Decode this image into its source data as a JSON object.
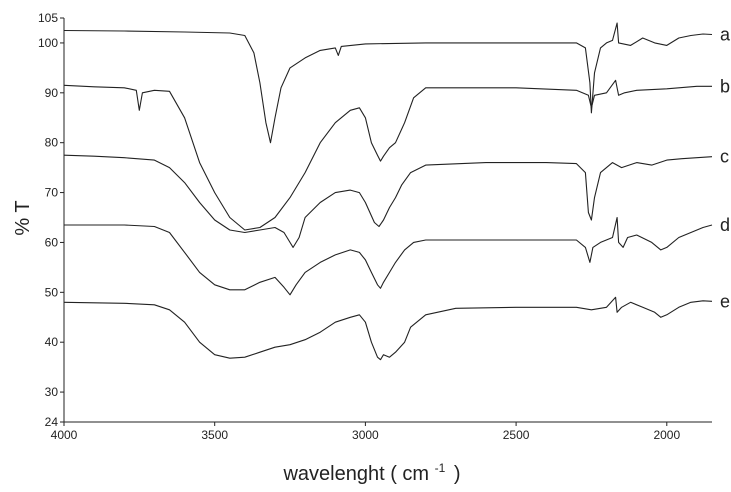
{
  "chart_data": {
    "type": "line",
    "title": "",
    "xlabel": "wavelenght ( cm",
    "xlabel_superscript": "-1",
    "xlabel_suffix": ")",
    "ylabel": "% T",
    "xlim": [
      4000,
      1850
    ],
    "ylim": [
      24,
      105
    ],
    "x_reversed": true,
    "grid": false,
    "x_ticks": [
      4000,
      3500,
      3000,
      2500,
      2000
    ],
    "y_ticks": [
      24,
      30,
      40,
      50,
      60,
      70,
      80,
      90,
      100,
      105
    ],
    "series": [
      {
        "name": "a",
        "points": [
          [
            4000,
            102.5
          ],
          [
            3800,
            102.4
          ],
          [
            3600,
            102.2
          ],
          [
            3450,
            102.0
          ],
          [
            3400,
            101.5
          ],
          [
            3370,
            98
          ],
          [
            3350,
            92
          ],
          [
            3330,
            84
          ],
          [
            3315,
            80
          ],
          [
            3300,
            85
          ],
          [
            3280,
            91
          ],
          [
            3250,
            95
          ],
          [
            3200,
            97
          ],
          [
            3150,
            98.5
          ],
          [
            3100,
            99
          ],
          [
            3090,
            97.5
          ],
          [
            3080,
            99.3
          ],
          [
            3000,
            99.8
          ],
          [
            2800,
            100
          ],
          [
            2500,
            100
          ],
          [
            2300,
            100
          ],
          [
            2270,
            99
          ],
          [
            2255,
            92
          ],
          [
            2250,
            86
          ],
          [
            2240,
            94
          ],
          [
            2220,
            99
          ],
          [
            2200,
            100
          ],
          [
            2180,
            100.5
          ],
          [
            2165,
            104
          ],
          [
            2160,
            100
          ],
          [
            2120,
            99.5
          ],
          [
            2080,
            101
          ],
          [
            2040,
            100
          ],
          [
            2000,
            99.5
          ],
          [
            1960,
            101
          ],
          [
            1920,
            101.5
          ],
          [
            1880,
            101.8
          ],
          [
            1850,
            101.7
          ]
        ]
      },
      {
        "name": "b",
        "points": [
          [
            4000,
            91.5
          ],
          [
            3900,
            91.2
          ],
          [
            3800,
            91
          ],
          [
            3760,
            90.5
          ],
          [
            3750,
            86.5
          ],
          [
            3740,
            90
          ],
          [
            3700,
            90.5
          ],
          [
            3650,
            90.3
          ],
          [
            3600,
            85
          ],
          [
            3550,
            76
          ],
          [
            3500,
            70
          ],
          [
            3450,
            65
          ],
          [
            3400,
            62.5
          ],
          [
            3350,
            63
          ],
          [
            3300,
            65
          ],
          [
            3250,
            69
          ],
          [
            3200,
            74
          ],
          [
            3150,
            80
          ],
          [
            3100,
            84
          ],
          [
            3050,
            86.5
          ],
          [
            3020,
            87
          ],
          [
            3000,
            85
          ],
          [
            2980,
            80
          ],
          [
            2960,
            77.5
          ],
          [
            2950,
            76.3
          ],
          [
            2940,
            77.3
          ],
          [
            2920,
            79
          ],
          [
            2900,
            80
          ],
          [
            2870,
            84
          ],
          [
            2840,
            89
          ],
          [
            2800,
            91
          ],
          [
            2500,
            91
          ],
          [
            2300,
            90.5
          ],
          [
            2260,
            89.5
          ],
          [
            2250,
            87
          ],
          [
            2240,
            89.5
          ],
          [
            2200,
            90
          ],
          [
            2170,
            92.5
          ],
          [
            2160,
            89.5
          ],
          [
            2140,
            90
          ],
          [
            2100,
            90.5
          ],
          [
            2000,
            90.8
          ],
          [
            1900,
            91.3
          ],
          [
            1850,
            91.3
          ]
        ]
      },
      {
        "name": "c",
        "points": [
          [
            4000,
            77.5
          ],
          [
            3900,
            77.3
          ],
          [
            3800,
            77
          ],
          [
            3700,
            76.5
          ],
          [
            3650,
            75
          ],
          [
            3600,
            72
          ],
          [
            3550,
            68
          ],
          [
            3500,
            64.5
          ],
          [
            3450,
            62.5
          ],
          [
            3400,
            62
          ],
          [
            3350,
            62.5
          ],
          [
            3300,
            63
          ],
          [
            3270,
            62
          ],
          [
            3250,
            60
          ],
          [
            3240,
            59
          ],
          [
            3220,
            61
          ],
          [
            3200,
            65
          ],
          [
            3150,
            68
          ],
          [
            3100,
            70
          ],
          [
            3050,
            70.5
          ],
          [
            3020,
            70
          ],
          [
            3000,
            68
          ],
          [
            2970,
            64
          ],
          [
            2955,
            63.2
          ],
          [
            2940,
            64.5
          ],
          [
            2920,
            67
          ],
          [
            2900,
            69
          ],
          [
            2880,
            71.5
          ],
          [
            2850,
            74
          ],
          [
            2800,
            75.5
          ],
          [
            2600,
            76
          ],
          [
            2400,
            76
          ],
          [
            2300,
            75.8
          ],
          [
            2270,
            74
          ],
          [
            2260,
            66
          ],
          [
            2250,
            64.5
          ],
          [
            2240,
            69
          ],
          [
            2220,
            74
          ],
          [
            2200,
            75
          ],
          [
            2180,
            76
          ],
          [
            2150,
            75
          ],
          [
            2100,
            76
          ],
          [
            2050,
            75.5
          ],
          [
            2000,
            76.5
          ],
          [
            1950,
            76.8
          ],
          [
            1900,
            77
          ],
          [
            1850,
            77.2
          ]
        ]
      },
      {
        "name": "d",
        "points": [
          [
            4000,
            63.5
          ],
          [
            3800,
            63.5
          ],
          [
            3700,
            63.2
          ],
          [
            3650,
            62
          ],
          [
            3600,
            58
          ],
          [
            3550,
            54
          ],
          [
            3500,
            51.5
          ],
          [
            3450,
            50.5
          ],
          [
            3400,
            50.5
          ],
          [
            3350,
            52
          ],
          [
            3300,
            53
          ],
          [
            3270,
            51
          ],
          [
            3250,
            49.5
          ],
          [
            3230,
            51.5
          ],
          [
            3200,
            54
          ],
          [
            3150,
            56
          ],
          [
            3100,
            57.5
          ],
          [
            3050,
            58.5
          ],
          [
            3020,
            58
          ],
          [
            3000,
            56.5
          ],
          [
            2980,
            54
          ],
          [
            2960,
            51.5
          ],
          [
            2950,
            50.8
          ],
          [
            2940,
            52
          ],
          [
            2920,
            54
          ],
          [
            2900,
            56
          ],
          [
            2870,
            58.5
          ],
          [
            2840,
            60
          ],
          [
            2800,
            60.5
          ],
          [
            2500,
            60.5
          ],
          [
            2300,
            60.5
          ],
          [
            2270,
            59
          ],
          [
            2255,
            56
          ],
          [
            2245,
            59
          ],
          [
            2220,
            60
          ],
          [
            2180,
            61
          ],
          [
            2165,
            65
          ],
          [
            2160,
            60
          ],
          [
            2145,
            59
          ],
          [
            2130,
            61
          ],
          [
            2100,
            61.5
          ],
          [
            2050,
            60
          ],
          [
            2020,
            58.5
          ],
          [
            2000,
            59
          ],
          [
            1960,
            61
          ],
          [
            1920,
            62
          ],
          [
            1880,
            63
          ],
          [
            1850,
            63.5
          ]
        ]
      },
      {
        "name": "e",
        "points": [
          [
            4000,
            48
          ],
          [
            3800,
            47.8
          ],
          [
            3700,
            47.5
          ],
          [
            3650,
            46.5
          ],
          [
            3600,
            44
          ],
          [
            3550,
            40
          ],
          [
            3500,
            37.5
          ],
          [
            3450,
            36.8
          ],
          [
            3400,
            37
          ],
          [
            3350,
            38
          ],
          [
            3300,
            39
          ],
          [
            3250,
            39.5
          ],
          [
            3200,
            40.5
          ],
          [
            3150,
            42
          ],
          [
            3100,
            44
          ],
          [
            3050,
            45
          ],
          [
            3020,
            45.5
          ],
          [
            3000,
            44
          ],
          [
            2980,
            40
          ],
          [
            2960,
            37
          ],
          [
            2950,
            36.5
          ],
          [
            2940,
            37.5
          ],
          [
            2920,
            37
          ],
          [
            2900,
            38
          ],
          [
            2870,
            40
          ],
          [
            2850,
            43
          ],
          [
            2800,
            45.5
          ],
          [
            2700,
            46.8
          ],
          [
            2500,
            47
          ],
          [
            2300,
            47
          ],
          [
            2250,
            46.5
          ],
          [
            2200,
            47
          ],
          [
            2170,
            49
          ],
          [
            2165,
            46
          ],
          [
            2150,
            47
          ],
          [
            2120,
            48
          ],
          [
            2080,
            47
          ],
          [
            2040,
            46
          ],
          [
            2020,
            45
          ],
          [
            2000,
            45.5
          ],
          [
            1960,
            47
          ],
          [
            1920,
            48
          ],
          [
            1880,
            48.3
          ],
          [
            1850,
            48.2
          ]
        ]
      }
    ]
  }
}
